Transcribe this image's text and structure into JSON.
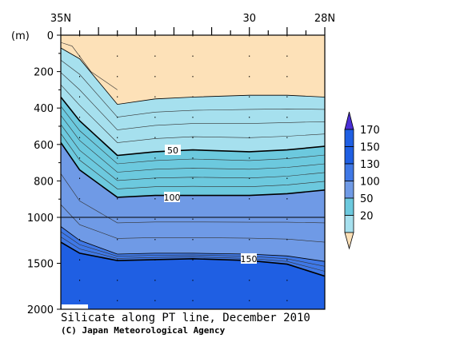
{
  "chart_data": {
    "type": "contour-section",
    "title": "Silicate along PT line, December 2010",
    "credit": "(C) Japan Meteorological Agency",
    "y_unit_label": "(m)",
    "x_axis": {
      "from_lat": 35,
      "to_lat": 28,
      "tick_labels": [
        {
          "lat": 35,
          "label": "35N"
        },
        {
          "lat": 30,
          "label": "30"
        },
        {
          "lat": 28,
          "label": "28N"
        }
      ]
    },
    "y_axis": {
      "upper_range": [
        0,
        1000
      ],
      "lower_range": [
        1000,
        2000
      ],
      "tick_labels": [
        {
          "depth": 0,
          "label": "0"
        },
        {
          "depth": 200,
          "label": "200"
        },
        {
          "depth": 400,
          "label": "400"
        },
        {
          "depth": 600,
          "label": "600"
        },
        {
          "depth": 800,
          "label": "800"
        },
        {
          "depth": 1000,
          "label": "1000"
        },
        {
          "depth": 1500,
          "label": "1500"
        },
        {
          "depth": 2000,
          "label": "2000"
        }
      ]
    },
    "colorbar": {
      "labels": [
        "170",
        "150",
        "130",
        "100",
        "50",
        "20"
      ],
      "colors": [
        "#3a3ad6",
        "#1f5fe3",
        "#3f78e6",
        "#6f9ae6",
        "#6cc9de",
        "#a6e0ee",
        "#fde1b8"
      ],
      "top_arrow_color": "#4a2fd6"
    },
    "fill_colors": {
      "lt20": "#fde1b8",
      "20_50": "#a6e0ee",
      "50_100": "#6cc9de",
      "100_130": "#6f9ae6",
      "130_150": "#3f78e6",
      "gt150": "#1f5fe3"
    },
    "stations_lat": [
      35,
      34.5,
      33.5,
      32.5,
      31.5,
      30,
      29,
      28
    ],
    "isolines": [
      {
        "value": 20,
        "depths": [
          70,
          130,
          380,
          350,
          340,
          330,
          330,
          340
        ]
      },
      {
        "value": 50,
        "depths": [
          340,
          470,
          660,
          640,
          630,
          640,
          630,
          610
        ]
      },
      {
        "value": 100,
        "depths": [
          590,
          740,
          890,
          880,
          880,
          880,
          870,
          850
        ]
      },
      {
        "value": 130,
        "depths": [
          1100,
          1250,
          1400,
          1390,
          1390,
          1400,
          1420,
          1480
        ]
      },
      {
        "value": 150,
        "depths": [
          1270,
          1390,
          1470,
          1460,
          1450,
          1470,
          1510,
          1640
        ]
      }
    ],
    "contour_labels": [
      {
        "text": "50"
      },
      {
        "text": "100"
      },
      {
        "text": "150"
      }
    ]
  }
}
